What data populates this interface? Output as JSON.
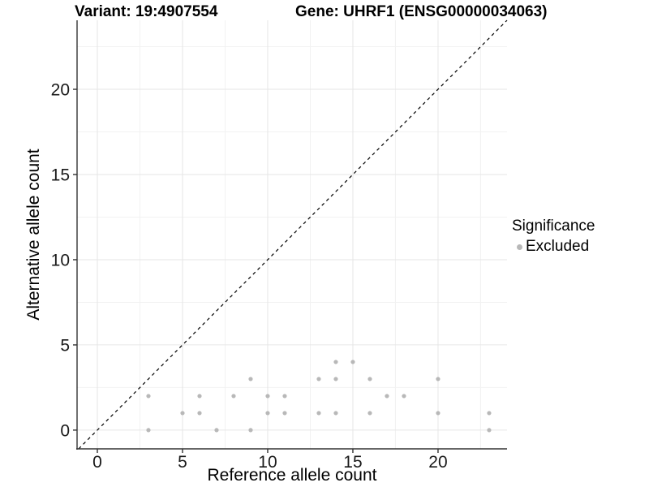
{
  "header": {
    "variant_title": "Variant: 19:4907554",
    "gene_title": "Gene: UHRF1 (ENSG00000034063)"
  },
  "chart_data": {
    "type": "scatter",
    "xlabel": "Reference allele count",
    "ylabel": "Alternative allele count",
    "xlim": [
      -1.19,
      24.05
    ],
    "ylim": [
      -1.1,
      24.05
    ],
    "major_ticks": [
      0,
      5,
      10,
      15,
      20
    ],
    "minor_ticks": [
      2.5,
      7.5,
      12.5,
      17.5,
      22.5
    ],
    "grid": "on",
    "identity_line": {
      "slope": 1,
      "intercept": 0,
      "style": "dashed",
      "color": "#000000"
    },
    "series": [
      {
        "name": "Excluded",
        "color": "#b8b8b8",
        "points": [
          [
            3,
            0
          ],
          [
            3,
            2
          ],
          [
            5,
            1
          ],
          [
            6,
            1
          ],
          [
            6,
            2
          ],
          [
            7,
            0
          ],
          [
            8,
            2
          ],
          [
            9,
            0
          ],
          [
            9,
            3
          ],
          [
            10,
            1
          ],
          [
            10,
            2
          ],
          [
            11,
            1
          ],
          [
            11,
            2
          ],
          [
            13,
            1
          ],
          [
            13,
            3
          ],
          [
            14,
            1
          ],
          [
            14,
            3
          ],
          [
            14,
            4
          ],
          [
            15,
            4
          ],
          [
            16,
            1
          ],
          [
            16,
            3
          ],
          [
            17,
            2
          ],
          [
            18,
            2
          ],
          [
            20,
            1
          ],
          [
            20,
            3
          ],
          [
            23,
            0
          ],
          [
            23,
            1
          ]
        ]
      }
    ],
    "legend": {
      "title": "Significance",
      "position": "right",
      "items": [
        {
          "label": "Excluded",
          "color": "#b8b8b8"
        }
      ]
    },
    "colors": {
      "grid_major": "#e6e6e6",
      "grid_minor": "#f2f2f2",
      "axis": "#333333",
      "tick_label": "#1a1a1a"
    }
  }
}
